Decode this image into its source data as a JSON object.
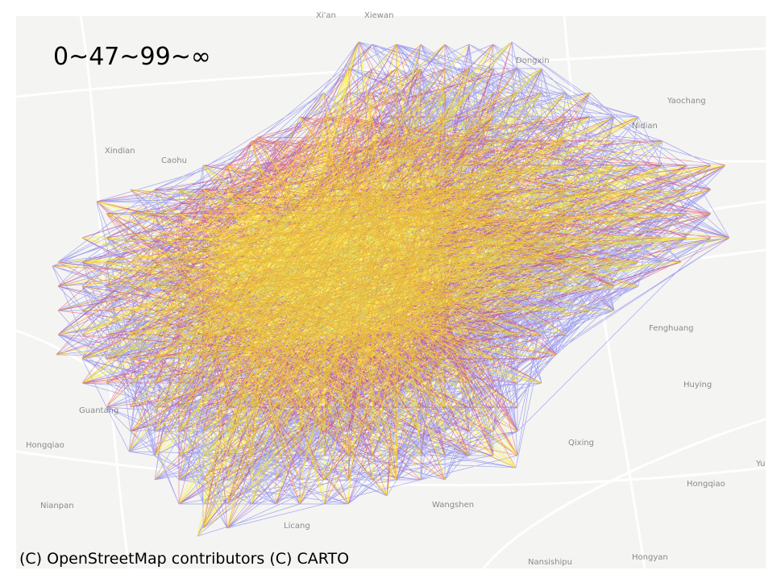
{
  "legend_label": "0~47~99~∞",
  "attribution": "(C) OpenStreetMap contributors (C) CARTO",
  "place_labels": [
    "Xi'an",
    "Xiewan",
    "Dongxin",
    "Yaochang",
    "Nidian",
    "Xindian",
    "Caohu",
    "Fenghuang",
    "Huying",
    "Qixing",
    "Hongqiao",
    "Hongqiao",
    "Guantang",
    "Nianpan",
    "Wangshen",
    "Licang",
    "Nansishipu",
    "Hongyan",
    "Yu"
  ]
}
